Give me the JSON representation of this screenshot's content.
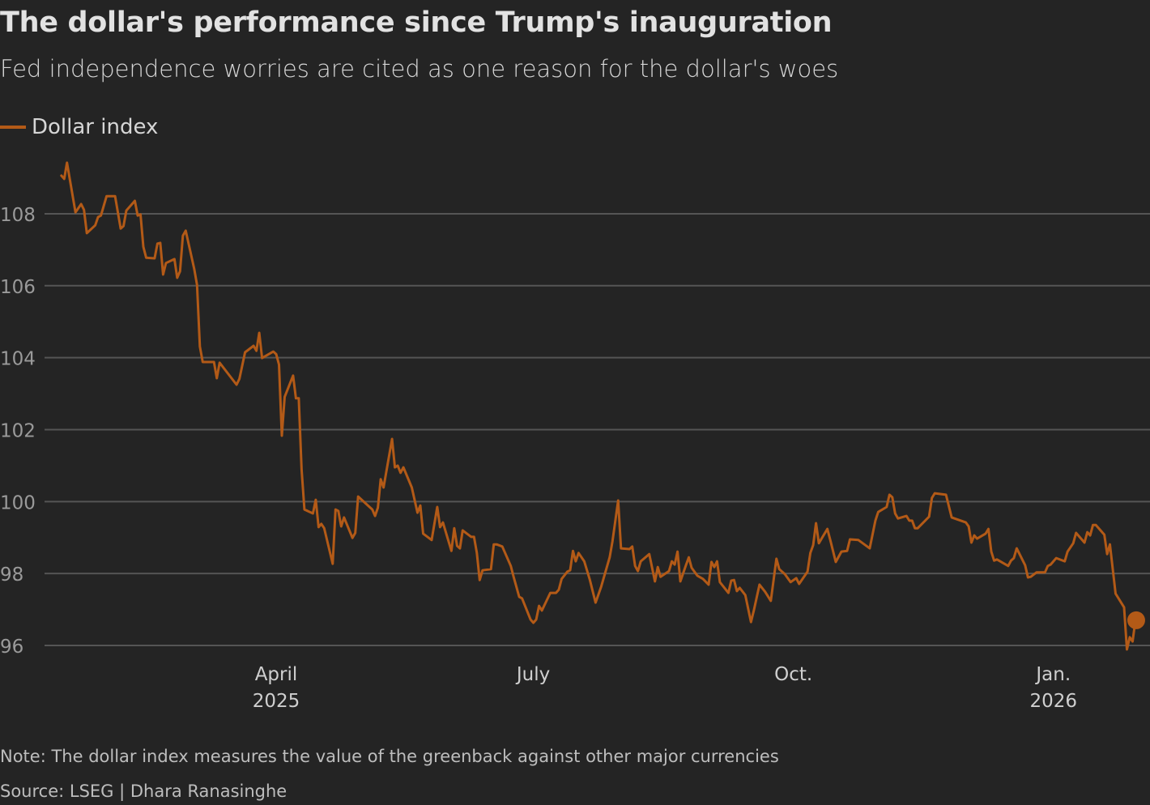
{
  "title": "The dollar's performance since Trump's inauguration",
  "subtitle": "Fed independence worries are cited as one reason for the dollar's woes",
  "note": "Note: The dollar index measures the value of the greenback against other major currencies",
  "source": "Source: LSEG | Dhara Ranasinghe",
  "colors": {
    "background": "#242424",
    "line": "#b35a17",
    "grid": "#555555",
    "text": "#e2e2e2"
  },
  "chart_data": {
    "type": "line",
    "title": "The dollar's performance since Trump's inauguration",
    "subtitle": "Fed independence worries are cited as one reason for the dollar's woes",
    "xlabel": "",
    "ylabel": "",
    "ylim": [
      95.6,
      109.8
    ],
    "yticks": [
      96,
      98,
      100,
      102,
      104,
      106,
      108
    ],
    "ytick_labels": [
      "96",
      "98",
      "100",
      "102",
      "104",
      "106",
      "108"
    ],
    "xticks": [
      {
        "date": "2025-04-01",
        "label": "April",
        "sublabel": "2025"
      },
      {
        "date": "2025-07-01",
        "label": "July",
        "sublabel": ""
      },
      {
        "date": "2025-10-01",
        "label": "Oct.",
        "sublabel": ""
      },
      {
        "date": "2026-01-01",
        "label": "Jan.",
        "sublabel": "2026"
      }
    ],
    "grid": "horizontal",
    "legend": {
      "position": "top-left",
      "entries": [
        "Dollar index"
      ]
    },
    "series": [
      {
        "name": "Dollar index",
        "color": "#b35a17",
        "end_marker": true,
        "points": [
          [
            "2025-01-15",
            109.06
          ],
          [
            "2025-01-16",
            108.97
          ],
          [
            "2025-01-17",
            109.42
          ],
          [
            "2025-01-20",
            108.04
          ],
          [
            "2025-01-22",
            108.27
          ],
          [
            "2025-01-23",
            108.11
          ],
          [
            "2025-01-24",
            107.46
          ],
          [
            "2025-01-27",
            107.68
          ],
          [
            "2025-01-28",
            107.91
          ],
          [
            "2025-01-29",
            107.95
          ],
          [
            "2025-01-31",
            108.49
          ],
          [
            "2025-02-03",
            108.49
          ],
          [
            "2025-02-05",
            107.59
          ],
          [
            "2025-02-06",
            107.66
          ],
          [
            "2025-02-07",
            108.09
          ],
          [
            "2025-02-10",
            108.36
          ],
          [
            "2025-02-11",
            107.95
          ],
          [
            "2025-02-12",
            107.98
          ],
          [
            "2025-02-13",
            107.08
          ],
          [
            "2025-02-14",
            106.78
          ],
          [
            "2025-02-17",
            106.76
          ],
          [
            "2025-02-18",
            107.17
          ],
          [
            "2025-02-19",
            107.19
          ],
          [
            "2025-02-20",
            106.31
          ],
          [
            "2025-02-21",
            106.63
          ],
          [
            "2025-02-24",
            106.74
          ],
          [
            "2025-02-25",
            106.22
          ],
          [
            "2025-02-26",
            106.4
          ],
          [
            "2025-02-27",
            107.39
          ],
          [
            "2025-02-28",
            107.53
          ],
          [
            "2025-03-03",
            106.47
          ],
          [
            "2025-03-04",
            106.02
          ],
          [
            "2025-03-05",
            104.31
          ],
          [
            "2025-03-06",
            103.88
          ],
          [
            "2025-03-10",
            103.88
          ],
          [
            "2025-03-11",
            103.43
          ],
          [
            "2025-03-12",
            103.86
          ],
          [
            "2025-03-18",
            103.25
          ],
          [
            "2025-03-19",
            103.41
          ],
          [
            "2025-03-21",
            104.15
          ],
          [
            "2025-03-24",
            104.33
          ],
          [
            "2025-03-25",
            104.19
          ],
          [
            "2025-03-26",
            104.69
          ],
          [
            "2025-03-27",
            103.99
          ],
          [
            "2025-03-31",
            104.17
          ],
          [
            "2025-04-01",
            104.1
          ],
          [
            "2025-04-02",
            103.81
          ],
          [
            "2025-04-03",
            101.83
          ],
          [
            "2025-04-04",
            102.91
          ],
          [
            "2025-04-07",
            103.5
          ],
          [
            "2025-04-08",
            102.87
          ],
          [
            "2025-04-09",
            102.87
          ],
          [
            "2025-04-10",
            100.89
          ],
          [
            "2025-04-11",
            99.78
          ],
          [
            "2025-04-14",
            99.67
          ],
          [
            "2025-04-15",
            100.05
          ],
          [
            "2025-04-16",
            99.29
          ],
          [
            "2025-04-17",
            99.38
          ],
          [
            "2025-04-18",
            99.26
          ],
          [
            "2025-04-21",
            98.27
          ],
          [
            "2025-04-22",
            99.78
          ],
          [
            "2025-04-23",
            99.74
          ],
          [
            "2025-04-24",
            99.31
          ],
          [
            "2025-04-25",
            99.56
          ],
          [
            "2025-04-28",
            98.99
          ],
          [
            "2025-04-29",
            99.13
          ],
          [
            "2025-04-30",
            100.14
          ],
          [
            "2025-05-05",
            99.78
          ],
          [
            "2025-05-06",
            99.6
          ],
          [
            "2025-05-07",
            99.83
          ],
          [
            "2025-05-08",
            100.62
          ],
          [
            "2025-05-09",
            100.39
          ],
          [
            "2025-05-12",
            101.74
          ],
          [
            "2025-05-13",
            100.95
          ],
          [
            "2025-05-14",
            101.0
          ],
          [
            "2025-05-15",
            100.8
          ],
          [
            "2025-05-16",
            100.95
          ],
          [
            "2025-05-19",
            100.39
          ],
          [
            "2025-05-21",
            99.69
          ],
          [
            "2025-05-22",
            99.89
          ],
          [
            "2025-05-23",
            99.11
          ],
          [
            "2025-05-26",
            98.93
          ],
          [
            "2025-05-28",
            99.85
          ],
          [
            "2025-05-29",
            99.29
          ],
          [
            "2025-05-30",
            99.42
          ],
          [
            "2025-06-02",
            98.63
          ],
          [
            "2025-06-03",
            99.26
          ],
          [
            "2025-06-04",
            98.77
          ],
          [
            "2025-06-05",
            98.7
          ],
          [
            "2025-06-06",
            99.2
          ],
          [
            "2025-06-09",
            99.02
          ],
          [
            "2025-06-10",
            99.02
          ],
          [
            "2025-06-11",
            98.57
          ],
          [
            "2025-06-12",
            97.82
          ],
          [
            "2025-06-13",
            98.09
          ],
          [
            "2025-06-16",
            98.12
          ],
          [
            "2025-06-17",
            98.81
          ],
          [
            "2025-06-18",
            98.81
          ],
          [
            "2025-06-20",
            98.75
          ],
          [
            "2025-06-23",
            98.21
          ],
          [
            "2025-06-24",
            97.91
          ],
          [
            "2025-06-26",
            97.35
          ],
          [
            "2025-06-27",
            97.31
          ],
          [
            "2025-06-30",
            96.72
          ],
          [
            "2025-07-01",
            96.63
          ],
          [
            "2025-07-02",
            96.72
          ],
          [
            "2025-07-03",
            97.1
          ],
          [
            "2025-07-04",
            96.97
          ],
          [
            "2025-07-07",
            97.46
          ],
          [
            "2025-07-09",
            97.46
          ],
          [
            "2025-07-10",
            97.55
          ],
          [
            "2025-07-11",
            97.85
          ],
          [
            "2025-07-13",
            98.05
          ],
          [
            "2025-07-14",
            98.09
          ],
          [
            "2025-07-15",
            98.63
          ],
          [
            "2025-07-16",
            98.34
          ],
          [
            "2025-07-17",
            98.57
          ],
          [
            "2025-07-19",
            98.34
          ],
          [
            "2025-07-21",
            97.82
          ],
          [
            "2025-07-23",
            97.19
          ],
          [
            "2025-07-25",
            97.64
          ],
          [
            "2025-07-28",
            98.45
          ],
          [
            "2025-07-29",
            98.9
          ],
          [
            "2025-07-31",
            100.03
          ],
          [
            "2025-08-01",
            98.7
          ],
          [
            "2025-08-04",
            98.68
          ],
          [
            "2025-08-05",
            98.75
          ],
          [
            "2025-08-06",
            98.21
          ],
          [
            "2025-08-07",
            98.07
          ],
          [
            "2025-08-08",
            98.34
          ],
          [
            "2025-08-11",
            98.54
          ],
          [
            "2025-08-13",
            97.78
          ],
          [
            "2025-08-14",
            98.18
          ],
          [
            "2025-08-15",
            97.91
          ],
          [
            "2025-08-18",
            98.07
          ],
          [
            "2025-08-19",
            98.34
          ],
          [
            "2025-08-20",
            98.25
          ],
          [
            "2025-08-21",
            98.61
          ],
          [
            "2025-08-22",
            97.78
          ],
          [
            "2025-08-24",
            98.23
          ],
          [
            "2025-08-25",
            98.45
          ],
          [
            "2025-08-26",
            98.16
          ],
          [
            "2025-08-28",
            97.94
          ],
          [
            "2025-08-30",
            97.85
          ],
          [
            "2025-09-01",
            97.69
          ],
          [
            "2025-09-02",
            98.32
          ],
          [
            "2025-09-03",
            98.18
          ],
          [
            "2025-09-04",
            98.34
          ],
          [
            "2025-09-05",
            97.76
          ],
          [
            "2025-09-08",
            97.46
          ],
          [
            "2025-09-09",
            97.8
          ],
          [
            "2025-09-10",
            97.82
          ],
          [
            "2025-09-11",
            97.51
          ],
          [
            "2025-09-12",
            97.6
          ],
          [
            "2025-09-14",
            97.4
          ],
          [
            "2025-09-16",
            96.65
          ],
          [
            "2025-09-17",
            96.97
          ],
          [
            "2025-09-19",
            97.69
          ],
          [
            "2025-09-21",
            97.49
          ],
          [
            "2025-09-23",
            97.24
          ],
          [
            "2025-09-25",
            98.41
          ],
          [
            "2025-09-26",
            98.12
          ],
          [
            "2025-09-28",
            97.98
          ],
          [
            "2025-09-30",
            97.76
          ],
          [
            "2025-10-02",
            97.87
          ],
          [
            "2025-10-03",
            97.71
          ],
          [
            "2025-10-06",
            98.05
          ],
          [
            "2025-10-07",
            98.57
          ],
          [
            "2025-10-08",
            98.79
          ],
          [
            "2025-10-09",
            99.4
          ],
          [
            "2025-10-10",
            98.84
          ],
          [
            "2025-10-13",
            99.24
          ],
          [
            "2025-10-14",
            98.95
          ],
          [
            "2025-10-16",
            98.32
          ],
          [
            "2025-10-18",
            98.61
          ],
          [
            "2025-10-20",
            98.63
          ],
          [
            "2025-10-21",
            98.95
          ],
          [
            "2025-10-24",
            98.93
          ],
          [
            "2025-10-28",
            98.7
          ],
          [
            "2025-10-30",
            99.47
          ],
          [
            "2025-10-31",
            99.71
          ],
          [
            "2025-11-03",
            99.85
          ],
          [
            "2025-11-04",
            100.19
          ],
          [
            "2025-11-05",
            100.12
          ],
          [
            "2025-11-06",
            99.67
          ],
          [
            "2025-11-07",
            99.53
          ],
          [
            "2025-11-10",
            99.6
          ],
          [
            "2025-11-11",
            99.47
          ],
          [
            "2025-11-12",
            99.47
          ],
          [
            "2025-11-13",
            99.26
          ],
          [
            "2025-11-14",
            99.26
          ],
          [
            "2025-11-18",
            99.58
          ],
          [
            "2025-11-19",
            100.1
          ],
          [
            "2025-11-20",
            100.23
          ],
          [
            "2025-11-24",
            100.19
          ],
          [
            "2025-11-26",
            99.56
          ],
          [
            "2025-12-01",
            99.42
          ],
          [
            "2025-12-02",
            99.31
          ],
          [
            "2025-12-03",
            98.86
          ],
          [
            "2025-12-04",
            99.06
          ],
          [
            "2025-12-05",
            98.97
          ],
          [
            "2025-12-08",
            99.11
          ],
          [
            "2025-12-09",
            99.24
          ],
          [
            "2025-12-10",
            98.61
          ],
          [
            "2025-12-11",
            98.36
          ],
          [
            "2025-12-12",
            98.39
          ],
          [
            "2025-12-16",
            98.21
          ],
          [
            "2025-12-17",
            98.36
          ],
          [
            "2025-12-18",
            98.43
          ],
          [
            "2025-12-19",
            98.7
          ],
          [
            "2025-12-22",
            98.23
          ],
          [
            "2025-12-23",
            97.89
          ],
          [
            "2025-12-24",
            97.91
          ],
          [
            "2025-12-26",
            98.03
          ],
          [
            "2025-12-29",
            98.03
          ],
          [
            "2025-12-30",
            98.21
          ],
          [
            "2025-12-31",
            98.25
          ],
          [
            "2026-01-02",
            98.43
          ],
          [
            "2026-01-05",
            98.34
          ],
          [
            "2026-01-06",
            98.61
          ],
          [
            "2026-01-08",
            98.84
          ],
          [
            "2026-01-09",
            99.13
          ],
          [
            "2026-01-12",
            98.86
          ],
          [
            "2026-01-13",
            99.15
          ],
          [
            "2026-01-14",
            99.06
          ],
          [
            "2026-01-15",
            99.35
          ],
          [
            "2026-01-16",
            99.35
          ],
          [
            "2026-01-19",
            99.08
          ],
          [
            "2026-01-20",
            98.54
          ],
          [
            "2026-01-21",
            98.81
          ],
          [
            "2026-01-23",
            97.44
          ],
          [
            "2026-01-26",
            97.06
          ],
          [
            "2026-01-27",
            95.89
          ],
          [
            "2026-01-28",
            96.23
          ],
          [
            "2026-01-29",
            96.11
          ],
          [
            "2026-01-30",
            96.7
          ]
        ]
      }
    ]
  }
}
